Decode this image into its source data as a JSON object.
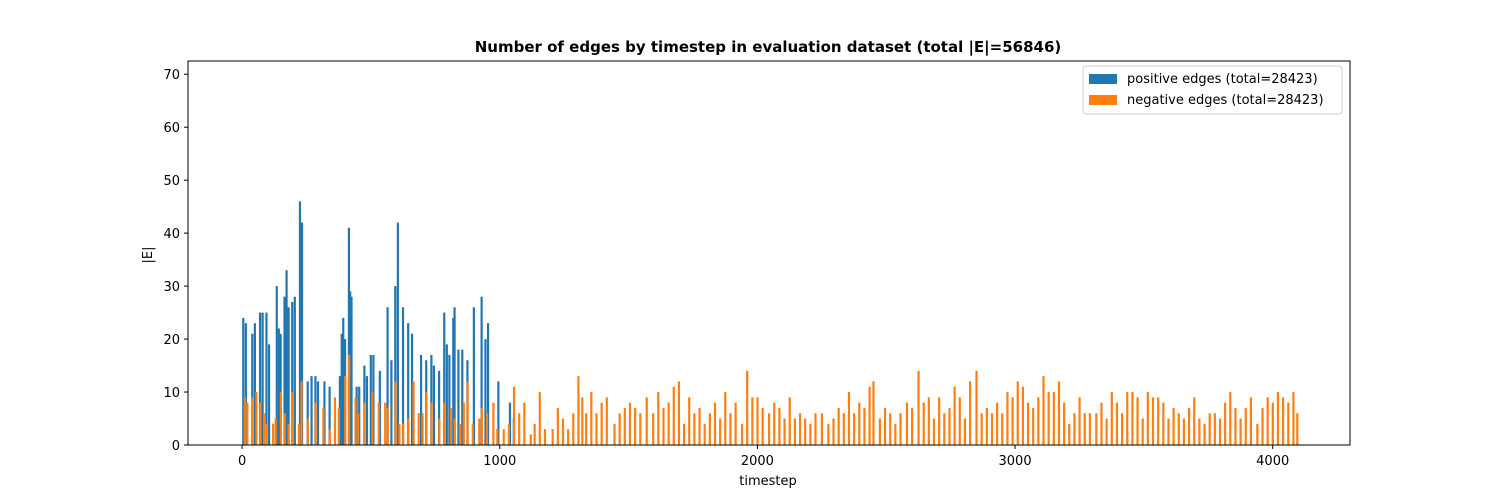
{
  "chart_data": {
    "type": "bar",
    "title": "Number of edges by timestep in evaluation dataset (total |E|=56846)",
    "xlabel": "timestep",
    "ylabel": "|E|",
    "xlim": [
      -210,
      4300
    ],
    "ylim": [
      0,
      72.5
    ],
    "xticks": [
      0,
      1000,
      2000,
      3000,
      4000
    ],
    "yticks": [
      0,
      10,
      20,
      30,
      40,
      50,
      60,
      70
    ],
    "legend_position": "upper right",
    "series": [
      {
        "name": "positive edges (total=28423)",
        "color": "#1f77b4",
        "points": [
          [
            10,
            24
          ],
          [
            20,
            23
          ],
          [
            45,
            21
          ],
          [
            55,
            23
          ],
          [
            75,
            25
          ],
          [
            85,
            25
          ],
          [
            100,
            25
          ],
          [
            110,
            19
          ],
          [
            140,
            30
          ],
          [
            148,
            22
          ],
          [
            155,
            21
          ],
          [
            170,
            28
          ],
          [
            178,
            33
          ],
          [
            186,
            26
          ],
          [
            200,
            27
          ],
          [
            210,
            28
          ],
          [
            230,
            46
          ],
          [
            238,
            42
          ],
          [
            260,
            12
          ],
          [
            275,
            13
          ],
          [
            290,
            13
          ],
          [
            300,
            12
          ],
          [
            325,
            12
          ],
          [
            345,
            11
          ],
          [
            385,
            13
          ],
          [
            392,
            21
          ],
          [
            398,
            24
          ],
          [
            405,
            20
          ],
          [
            420,
            41
          ],
          [
            425,
            29
          ],
          [
            430,
            28
          ],
          [
            450,
            11
          ],
          [
            460,
            11
          ],
          [
            480,
            15
          ],
          [
            490,
            13
          ],
          [
            505,
            17
          ],
          [
            515,
            17
          ],
          [
            540,
            14
          ],
          [
            570,
            26
          ],
          [
            585,
            16
          ],
          [
            600,
            30
          ],
          [
            610,
            42
          ],
          [
            630,
            26
          ],
          [
            650,
            23
          ],
          [
            665,
            21
          ],
          [
            700,
            17
          ],
          [
            720,
            16
          ],
          [
            740,
            17
          ],
          [
            750,
            15
          ],
          [
            770,
            14
          ],
          [
            790,
            25
          ],
          [
            800,
            19
          ],
          [
            810,
            17
          ],
          [
            825,
            24
          ],
          [
            830,
            26
          ],
          [
            845,
            18
          ],
          [
            860,
            18
          ],
          [
            880,
            16
          ],
          [
            905,
            26
          ],
          [
            935,
            28
          ],
          [
            950,
            20
          ],
          [
            960,
            23
          ],
          [
            1000,
            12
          ],
          [
            1045,
            8
          ],
          [
            1060,
            5
          ]
        ]
      },
      {
        "name": "negative edges (total=28423)",
        "color": "#ff7f0e",
        "points": [
          [
            5,
            9
          ],
          [
            15,
            8
          ],
          [
            35,
            9
          ],
          [
            50,
            10
          ],
          [
            65,
            8
          ],
          [
            80,
            6
          ],
          [
            90,
            4
          ],
          [
            115,
            4
          ],
          [
            125,
            5
          ],
          [
            145,
            10
          ],
          [
            160,
            6
          ],
          [
            175,
            4
          ],
          [
            190,
            10
          ],
          [
            215,
            4
          ],
          [
            225,
            12
          ],
          [
            250,
            5
          ],
          [
            280,
            8
          ],
          [
            310,
            7
          ],
          [
            335,
            3
          ],
          [
            355,
            9
          ],
          [
            370,
            7
          ],
          [
            395,
            13
          ],
          [
            410,
            17
          ],
          [
            435,
            9
          ],
          [
            445,
            6
          ],
          [
            470,
            8
          ],
          [
            500,
            10
          ],
          [
            525,
            8
          ],
          [
            550,
            8
          ],
          [
            560,
            7
          ],
          [
            590,
            12
          ],
          [
            605,
            4
          ],
          [
            620,
            4
          ],
          [
            640,
            5
          ],
          [
            660,
            12
          ],
          [
            680,
            6
          ],
          [
            695,
            6
          ],
          [
            710,
            10
          ],
          [
            730,
            8
          ],
          [
            760,
            5
          ],
          [
            780,
            8
          ],
          [
            805,
            7
          ],
          [
            820,
            5
          ],
          [
            840,
            4
          ],
          [
            855,
            8
          ],
          [
            870,
            12
          ],
          [
            890,
            4
          ],
          [
            915,
            5
          ],
          [
            925,
            7
          ],
          [
            945,
            6
          ],
          [
            970,
            8
          ],
          [
            985,
            3
          ],
          [
            1010,
            3
          ],
          [
            1030,
            4
          ],
          [
            1050,
            11
          ],
          [
            1070,
            6
          ],
          [
            1090,
            8
          ],
          [
            1115,
            2
          ],
          [
            1130,
            4
          ],
          [
            1150,
            10
          ],
          [
            1170,
            3
          ],
          [
            1200,
            3
          ],
          [
            1220,
            7
          ],
          [
            1240,
            5
          ],
          [
            1260,
            3
          ],
          [
            1280,
            6
          ],
          [
            1300,
            13
          ],
          [
            1315,
            9
          ],
          [
            1330,
            6
          ],
          [
            1350,
            10
          ],
          [
            1370,
            6
          ],
          [
            1390,
            8
          ],
          [
            1410,
            9
          ],
          [
            1440,
            4
          ],
          [
            1460,
            6
          ],
          [
            1480,
            7
          ],
          [
            1500,
            8
          ],
          [
            1520,
            7
          ],
          [
            1540,
            6
          ],
          [
            1565,
            9
          ],
          [
            1590,
            6
          ],
          [
            1610,
            10
          ],
          [
            1630,
            7
          ],
          [
            1650,
            8
          ],
          [
            1670,
            11
          ],
          [
            1690,
            12
          ],
          [
            1710,
            4
          ],
          [
            1730,
            9
          ],
          [
            1750,
            6
          ],
          [
            1770,
            7
          ],
          [
            1790,
            4
          ],
          [
            1810,
            6
          ],
          [
            1830,
            8
          ],
          [
            1850,
            5
          ],
          [
            1870,
            10
          ],
          [
            1890,
            6
          ],
          [
            1910,
            8
          ],
          [
            1935,
            4
          ],
          [
            1955,
            14
          ],
          [
            1975,
            9
          ],
          [
            1995,
            9
          ],
          [
            2015,
            7
          ],
          [
            2040,
            6
          ],
          [
            2060,
            8
          ],
          [
            2080,
            7
          ],
          [
            2100,
            5
          ],
          [
            2120,
            9
          ],
          [
            2140,
            5
          ],
          [
            2160,
            6
          ],
          [
            2180,
            5
          ],
          [
            2200,
            4
          ],
          [
            2220,
            6
          ],
          [
            2245,
            6
          ],
          [
            2270,
            4
          ],
          [
            2290,
            5
          ],
          [
            2310,
            7
          ],
          [
            2330,
            6
          ],
          [
            2350,
            10
          ],
          [
            2370,
            6
          ],
          [
            2390,
            8
          ],
          [
            2410,
            7
          ],
          [
            2430,
            11
          ],
          [
            2445,
            12
          ],
          [
            2470,
            5
          ],
          [
            2490,
            7
          ],
          [
            2510,
            6
          ],
          [
            2530,
            4
          ],
          [
            2550,
            6
          ],
          [
            2575,
            8
          ],
          [
            2595,
            7
          ],
          [
            2620,
            14
          ],
          [
            2640,
            8
          ],
          [
            2660,
            9
          ],
          [
            2680,
            5
          ],
          [
            2700,
            9
          ],
          [
            2720,
            6
          ],
          [
            2740,
            7
          ],
          [
            2760,
            11
          ],
          [
            2780,
            9
          ],
          [
            2800,
            5
          ],
          [
            2820,
            12
          ],
          [
            2845,
            14
          ],
          [
            2865,
            6
          ],
          [
            2885,
            7
          ],
          [
            2905,
            6
          ],
          [
            2925,
            8
          ],
          [
            2945,
            6
          ],
          [
            2965,
            10
          ],
          [
            2985,
            9
          ],
          [
            3005,
            12
          ],
          [
            3025,
            11
          ],
          [
            3045,
            8
          ],
          [
            3065,
            7
          ],
          [
            3085,
            9
          ],
          [
            3105,
            13
          ],
          [
            3125,
            10
          ],
          [
            3145,
            10
          ],
          [
            3165,
            12
          ],
          [
            3185,
            8
          ],
          [
            3205,
            4
          ],
          [
            3225,
            6
          ],
          [
            3245,
            9
          ],
          [
            3265,
            6
          ],
          [
            3285,
            6
          ],
          [
            3310,
            6
          ],
          [
            3330,
            8
          ],
          [
            3350,
            5
          ],
          [
            3370,
            10
          ],
          [
            3390,
            8
          ],
          [
            3410,
            6
          ],
          [
            3430,
            10
          ],
          [
            3450,
            10
          ],
          [
            3470,
            9
          ],
          [
            3490,
            5
          ],
          [
            3510,
            10
          ],
          [
            3530,
            9
          ],
          [
            3550,
            9
          ],
          [
            3570,
            8
          ],
          [
            3590,
            5
          ],
          [
            3610,
            7
          ],
          [
            3630,
            6
          ],
          [
            3650,
            5
          ],
          [
            3670,
            7
          ],
          [
            3690,
            9
          ],
          [
            3710,
            5
          ],
          [
            3730,
            4
          ],
          [
            3750,
            6
          ],
          [
            3770,
            6
          ],
          [
            3790,
            5
          ],
          [
            3810,
            8
          ],
          [
            3830,
            10
          ],
          [
            3850,
            7
          ],
          [
            3870,
            5
          ],
          [
            3890,
            7
          ],
          [
            3910,
            9
          ],
          [
            3935,
            4
          ],
          [
            3955,
            7
          ],
          [
            3975,
            9
          ],
          [
            3995,
            8
          ],
          [
            4015,
            10
          ],
          [
            4035,
            9
          ],
          [
            4055,
            8
          ],
          [
            4075,
            10
          ],
          [
            4090,
            6
          ]
        ]
      }
    ]
  }
}
